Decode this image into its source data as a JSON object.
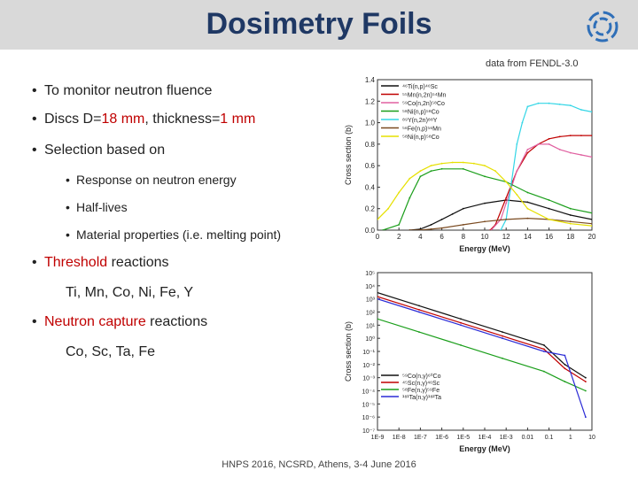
{
  "title": "Dosimetry Foils",
  "source": "data from FENDL-3.0",
  "bullets": {
    "b1": "To monitor neutron fluence",
    "b2_pre": "Discs D=",
    "b2_val1": "18 mm",
    "b2_mid": ", thickness=",
    "b2_val2": "1 mm",
    "b3": "Selection based on",
    "sub1": "Response on neutron energy",
    "sub2": "Half-lives",
    "sub3": "Material properties (i.e. melting point)",
    "b4_red": "Threshold",
    "b4_rest": " reactions",
    "b4_items": "Ti, Mn, Co, Ni, Fe, Y",
    "b5_red": "Neutron capture",
    "b5_rest": " reactions",
    "b5_items": "Co, Sc, Ta, Fe"
  },
  "footer": "HNPS 2016, NCSRD, Athens, 3-4 June 2016",
  "colors": {
    "title": "#1f3864",
    "accent": "#c00000",
    "title_bar": "#d9d9d9"
  },
  "logo_icon": "institute-logo-icon",
  "chart_data": [
    {
      "type": "line",
      "xlabel": "Energy (MeV)",
      "ylabel": "Cross section (b)",
      "xlim": [
        0,
        20
      ],
      "ylim": [
        0,
        1.4
      ],
      "xticks": [
        "0",
        "2",
        "4",
        "6",
        "8",
        "10",
        "12",
        "14",
        "16",
        "18",
        "20"
      ],
      "yticks": [
        "0.0",
        "0.2",
        "0.4",
        "0.6",
        "0.8",
        "1.0",
        "1.2",
        "1.4"
      ],
      "legend_position": "top-left",
      "series": [
        {
          "name": "⁴⁶Ti(n,p)⁴⁶Sc",
          "color": "#111111",
          "x": [
            3,
            4,
            5,
            6,
            7,
            8,
            10,
            12,
            14,
            16,
            18,
            20
          ],
          "y": [
            0,
            0.01,
            0.05,
            0.1,
            0.15,
            0.2,
            0.25,
            0.28,
            0.26,
            0.2,
            0.14,
            0.1
          ]
        },
        {
          "name": "⁵⁵Mn(n,2n)⁵⁴Mn",
          "color": "#c00000",
          "x": [
            10.5,
            11,
            12,
            13,
            14,
            15,
            16,
            17,
            18,
            19,
            20
          ],
          "y": [
            0,
            0.05,
            0.3,
            0.55,
            0.72,
            0.8,
            0.85,
            0.87,
            0.88,
            0.88,
            0.88
          ]
        },
        {
          "name": "⁵⁹Co(n,2n)⁵⁸Co",
          "color": "#e060a0",
          "x": [
            10.6,
            11.5,
            12,
            13,
            14,
            15,
            16,
            17,
            18,
            19,
            20
          ],
          "y": [
            0,
            0.1,
            0.25,
            0.55,
            0.75,
            0.8,
            0.8,
            0.75,
            0.72,
            0.7,
            0.68
          ]
        },
        {
          "name": "⁵⁸Ni(n,p)⁵⁸Co",
          "color": "#1a9e1a",
          "x": [
            0.5,
            2,
            3,
            4,
            5,
            6,
            8,
            10,
            12,
            14,
            16,
            18,
            20
          ],
          "y": [
            0,
            0.05,
            0.3,
            0.5,
            0.55,
            0.57,
            0.57,
            0.5,
            0.45,
            0.35,
            0.28,
            0.2,
            0.16
          ]
        },
        {
          "name": "⁸⁹Y(n,2n)⁸⁸Y",
          "color": "#33d6e6",
          "x": [
            11.5,
            12,
            12.5,
            13,
            13.5,
            14,
            15,
            16,
            17,
            18,
            19,
            20
          ],
          "y": [
            0,
            0.1,
            0.45,
            0.8,
            1.0,
            1.15,
            1.18,
            1.18,
            1.17,
            1.16,
            1.12,
            1.1
          ]
        },
        {
          "name": "⁵⁶Fe(n,p)⁵⁶Mn",
          "color": "#7a4a20",
          "x": [
            3,
            4,
            5,
            6,
            8,
            10,
            12,
            14,
            16,
            18,
            20
          ],
          "y": [
            0,
            0.002,
            0.01,
            0.02,
            0.05,
            0.08,
            0.1,
            0.11,
            0.1,
            0.08,
            0.06
          ]
        },
        {
          "name": "⁵⁸Ni(n,p)⁵⁸Co",
          "color": "#e6e000",
          "x": [
            0,
            1,
            2,
            3,
            4,
            5,
            6,
            7,
            8,
            9,
            10,
            11,
            12,
            13,
            14,
            16,
            18,
            20
          ],
          "y": [
            0.1,
            0.2,
            0.35,
            0.48,
            0.55,
            0.6,
            0.62,
            0.63,
            0.63,
            0.62,
            0.6,
            0.55,
            0.45,
            0.33,
            0.2,
            0.1,
            0.06,
            0.04
          ]
        }
      ]
    },
    {
      "type": "line",
      "xlabel": "Energy (MeV)",
      "ylabel": "Cross section (b)",
      "xscale": "log",
      "yscale": "log",
      "xlim": [
        1e-09,
        20
      ],
      "ylim": [
        1e-07,
        100000.0
      ],
      "xticks": [
        "1E-9",
        "1E-8",
        "1E-7",
        "1E-6",
        "1E-5",
        "1E-4",
        "1E-3",
        "0.01",
        "0.1",
        "1",
        "10"
      ],
      "yticks": [
        "10⁵",
        "10⁴",
        "10³",
        "10²",
        "10¹",
        "10⁰",
        "10⁻¹",
        "10⁻²",
        "10⁻³",
        "10⁻⁴",
        "10⁻⁵",
        "10⁻⁶",
        "10⁻⁷"
      ],
      "legend_position": "bottom-left",
      "series": [
        {
          "name": "⁵⁹Co(n,γ)⁶⁰Co",
          "color": "#111111",
          "x": [
            1e-09,
            1e-07,
            1e-05,
            0.001,
            0.1,
            1,
            10
          ],
          "y": [
            3000,
            300,
            30,
            3,
            0.3,
            0.01,
            0.001
          ]
        },
        {
          "name": "⁴⁵Sc(n,γ)⁴⁶Sc",
          "color": "#c00000",
          "x": [
            1e-09,
            1e-07,
            1e-05,
            0.001,
            0.1,
            1,
            10
          ],
          "y": [
            1500,
            150,
            15,
            1.5,
            0.15,
            0.005,
            0.0005
          ]
        },
        {
          "name": "⁵⁸Fe(n,γ)⁵⁹Fe",
          "color": "#1a9e1a",
          "x": [
            1e-09,
            1e-07,
            1e-05,
            0.001,
            0.1,
            1,
            10
          ],
          "y": [
            30,
            3,
            0.3,
            0.03,
            0.003,
            0.0005,
            0.0001
          ]
        },
        {
          "name": "¹⁸¹Ta(n,γ)¹⁸²Ta",
          "color": "#2b2bd6",
          "x": [
            1e-09,
            1e-07,
            1e-05,
            0.001,
            0.1,
            1,
            10
          ],
          "y": [
            1000,
            100,
            10,
            1,
            0.1,
            0.05,
            1e-06
          ]
        }
      ]
    }
  ]
}
